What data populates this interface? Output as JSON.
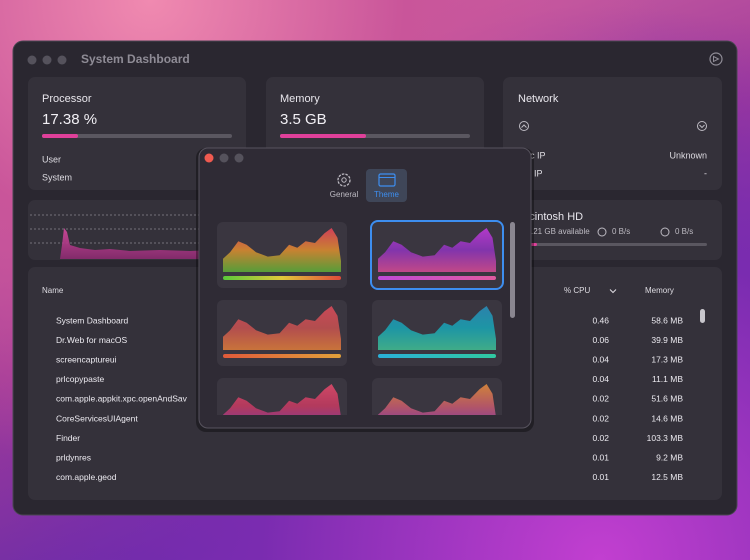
{
  "window": {
    "title": "System Dashboard"
  },
  "cards": {
    "processor": {
      "title": "Processor",
      "value": "17.38 %",
      "labels": [
        "User",
        "System"
      ]
    },
    "memory": {
      "title": "Memory",
      "value": "3.5 GB"
    },
    "network": {
      "title": "Network",
      "rows": [
        [
          "Public IP",
          "Unknown"
        ],
        [
          "Local IP",
          "-"
        ]
      ]
    },
    "disk": {
      "title": "Macintosh HD",
      "available": ".21 GB available",
      "read": "0 B/s",
      "write": "0 B/s"
    }
  },
  "table": {
    "columns": [
      "Name",
      "% CPU",
      "Memory"
    ],
    "rows": [
      [
        "System Dashboard",
        "0.46",
        "58.6 MB"
      ],
      [
        "Dr.Web for macOS",
        "0.06",
        "39.9 MB"
      ],
      [
        "screencaptureui",
        "0.04",
        "17.3 MB"
      ],
      [
        "prlcopypaste",
        "0.04",
        "11.1 MB"
      ],
      [
        "com.apple.appkit.xpc.openAndSav",
        "0.02",
        "51.6 MB"
      ],
      [
        "CoreServicesUIAgent",
        "0.02",
        "14.6 MB"
      ],
      [
        "Finder",
        "0.02",
        "103.3 MB"
      ],
      [
        "prldynres",
        "0.01",
        "9.2 MB"
      ],
      [
        "com.apple.geod",
        "0.01",
        "12.5 MB"
      ]
    ]
  },
  "preferences": {
    "tabs": [
      "General",
      "Theme"
    ]
  }
}
